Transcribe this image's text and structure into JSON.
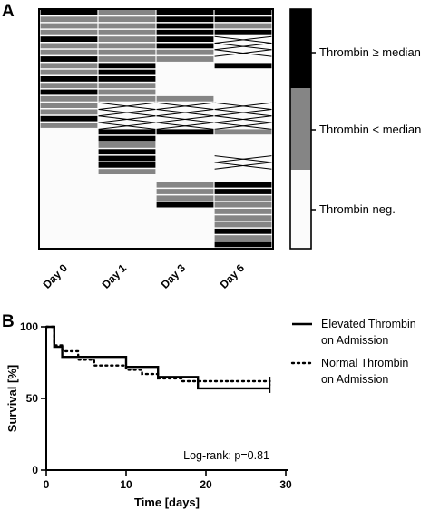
{
  "chart_data": [
    {
      "type": "heatmap",
      "panel_label": "A",
      "columns": [
        "Day 0",
        "Day 1",
        "Day 3",
        "Day 6"
      ],
      "legend": [
        {
          "key": "high",
          "label": "Thrombin  ≥ median",
          "color": "#000000"
        },
        {
          "key": "low",
          "label": "Thrombin  < median",
          "color": "#858585"
        },
        {
          "key": "neg",
          "label": "Thrombin  neg.",
          "color": "#fbfbfb"
        }
      ],
      "n_rows": 36,
      "row_states": [
        [
          "H",
          "L",
          "H",
          "H"
        ],
        [
          "L",
          "L",
          "H",
          "H"
        ],
        [
          "L",
          "L",
          "H",
          "L"
        ],
        [
          "L",
          "L",
          "H",
          "H"
        ],
        [
          "H",
          "L",
          "H",
          "X"
        ],
        [
          "L",
          "L",
          "H",
          "X"
        ],
        [
          "L",
          "L",
          "L",
          "X"
        ],
        [
          "H",
          "L",
          "L",
          "N"
        ],
        [
          "L",
          "H",
          "N",
          "H"
        ],
        [
          "L",
          "H",
          "N",
          "N"
        ],
        [
          "H",
          "H",
          "N",
          "N"
        ],
        [
          "L",
          "L",
          "N",
          "N"
        ],
        [
          "H",
          "L",
          "N",
          "N"
        ],
        [
          "L",
          "L",
          "L",
          "N"
        ],
        [
          "L",
          "X",
          "X",
          "X"
        ],
        [
          "L",
          "X",
          "X",
          "X"
        ],
        [
          "H",
          "X",
          "X",
          "X"
        ],
        [
          "L",
          "X",
          "X",
          "X"
        ],
        [
          "N",
          "H",
          "H",
          "L"
        ],
        [
          "N",
          "H",
          "N",
          "N"
        ],
        [
          "N",
          "L",
          "N",
          "N"
        ],
        [
          "N",
          "H",
          "N",
          "N"
        ],
        [
          "N",
          "H",
          "N",
          "X"
        ],
        [
          "N",
          "H",
          "N",
          "X"
        ],
        [
          "N",
          "L",
          "N",
          "N"
        ],
        [
          "N",
          "N",
          "N",
          "N"
        ],
        [
          "N",
          "N",
          "L",
          "H"
        ],
        [
          "N",
          "N",
          "L",
          "H"
        ],
        [
          "N",
          "N",
          "L",
          "L"
        ],
        [
          "N",
          "N",
          "H",
          "L"
        ],
        [
          "N",
          "N",
          "N",
          "L"
        ],
        [
          "N",
          "N",
          "N",
          "L"
        ],
        [
          "N",
          "N",
          "N",
          "L"
        ],
        [
          "N",
          "N",
          "N",
          "H"
        ],
        [
          "N",
          "N",
          "N",
          "L"
        ],
        [
          "N",
          "N",
          "N",
          "H"
        ]
      ]
    },
    {
      "type": "line",
      "panel_label": "B",
      "xlabel": "Time [days]",
      "ylabel": "Survival [%]",
      "xlim": [
        0,
        30
      ],
      "ylim": [
        0,
        100
      ],
      "x_ticks": [
        0,
        10,
        20,
        30
      ],
      "y_ticks": [
        0,
        50,
        100
      ],
      "annotation": "Log-rank: p=0.81",
      "series": [
        {
          "name": "Elevated Thrombin\non Admission",
          "name_lines": [
            "Elevated Thrombin",
            "on Admission"
          ],
          "style": "solid",
          "step_points": [
            [
              0,
              100
            ],
            [
              1,
              100
            ],
            [
              1,
              86
            ],
            [
              2,
              86
            ],
            [
              2,
              79
            ],
            [
              10,
              79
            ],
            [
              10,
              72
            ],
            [
              14,
              72
            ],
            [
              14,
              65
            ],
            [
              19,
              65
            ],
            [
              19,
              57
            ],
            [
              28,
              57
            ]
          ]
        },
        {
          "name": "Normal Thrombin\non Admission",
          "name_lines": [
            "Normal Thrombin",
            "on Admission"
          ],
          "style": "dotted",
          "step_points": [
            [
              0,
              100
            ],
            [
              1,
              100
            ],
            [
              1,
              87
            ],
            [
              2,
              87
            ],
            [
              2,
              83
            ],
            [
              4,
              83
            ],
            [
              4,
              77
            ],
            [
              6,
              77
            ],
            [
              6,
              73
            ],
            [
              10,
              73
            ],
            [
              10,
              70
            ],
            [
              12,
              70
            ],
            [
              12,
              67
            ],
            [
              14,
              67
            ],
            [
              14,
              64
            ],
            [
              17,
              64
            ],
            [
              17,
              62
            ],
            [
              28,
              62
            ]
          ]
        }
      ]
    }
  ]
}
